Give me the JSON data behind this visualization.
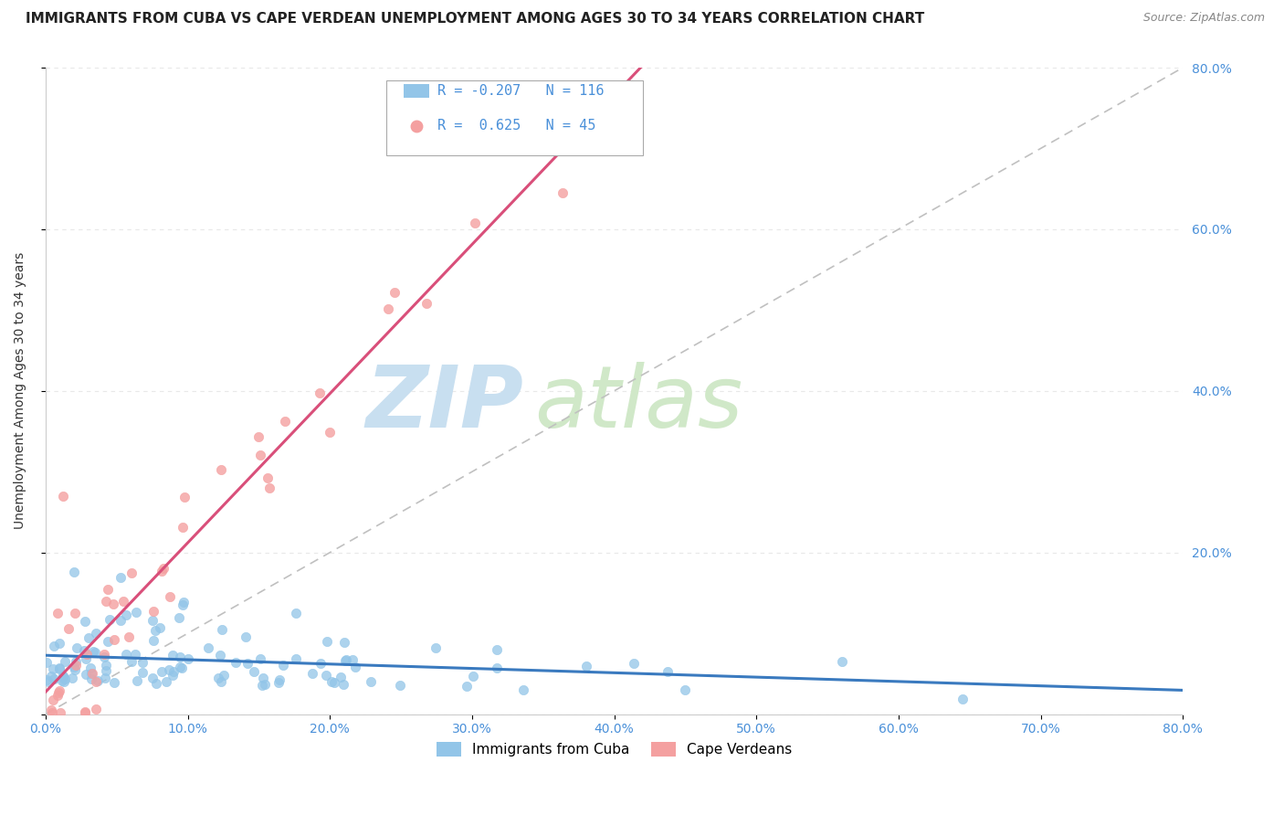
{
  "title": "IMMIGRANTS FROM CUBA VS CAPE VERDEAN UNEMPLOYMENT AMONG AGES 30 TO 34 YEARS CORRELATION CHART",
  "source": "Source: ZipAtlas.com",
  "ylabel": "Unemployment Among Ages 30 to 34 years",
  "xlim": [
    0.0,
    0.8
  ],
  "ylim": [
    0.0,
    0.8
  ],
  "xticks": [
    0.0,
    0.1,
    0.2,
    0.3,
    0.4,
    0.5,
    0.6,
    0.7,
    0.8
  ],
  "xticklabels": [
    "0.0%",
    "10.0%",
    "20.0%",
    "30.0%",
    "40.0%",
    "50.0%",
    "60.0%",
    "70.0%",
    "80.0%"
  ],
  "yticks": [
    0.0,
    0.2,
    0.4,
    0.6,
    0.8
  ],
  "yticklabels_right": [
    "",
    "20.0%",
    "40.0%",
    "60.0%",
    "80.0%"
  ],
  "cuba_color": "#92c5e8",
  "cv_color": "#f4a0a0",
  "trend_cuba_color": "#3a7abf",
  "trend_cv_color": "#d94f7a",
  "ref_line_color": "#c0c0c0",
  "watermark_zip_color": "#c8dff0",
  "watermark_atlas_color": "#d0e8c8",
  "legend_R_cuba": "-0.207",
  "legend_N_cuba": "116",
  "legend_R_cv": "0.625",
  "legend_N_cv": "45",
  "background_color": "#ffffff",
  "grid_color": "#e8e8e8",
  "title_fontsize": 11,
  "tick_fontsize": 10,
  "tick_color": "#4a90d9"
}
